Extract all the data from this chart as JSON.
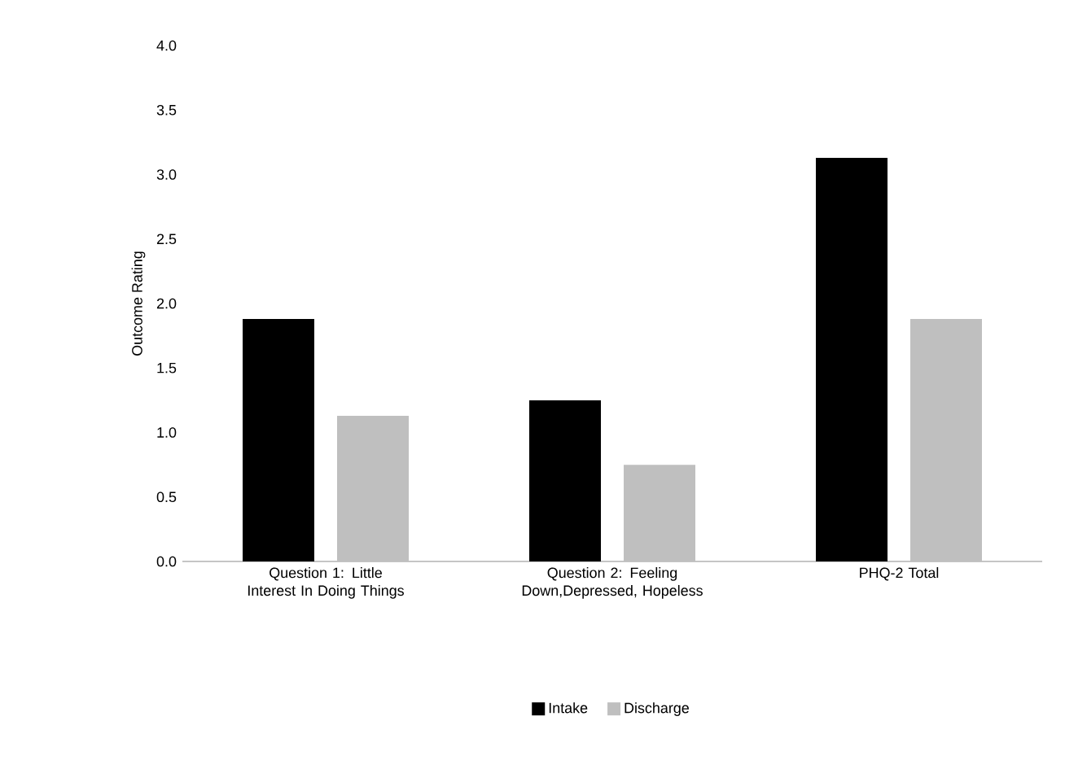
{
  "chart_data": {
    "type": "bar",
    "ylabel": "Outcome Rating",
    "categories": [
      "Question 1: Little Interest In Doing Things",
      "Question 2: Feeling Down,Depressed, Hopeless",
      "PHQ-2 Total"
    ],
    "series": [
      {
        "name": "Intake",
        "color": "#000000",
        "values": [
          1.88,
          1.25,
          3.13
        ]
      },
      {
        "name": "Discharge",
        "color": "#bfbfbf",
        "values": [
          1.13,
          0.75,
          1.88
        ]
      }
    ],
    "ylim": [
      0,
      4
    ],
    "yticks": [
      {
        "value": 0,
        "label": "0.0"
      },
      {
        "value": 0.5,
        "label": "0.5"
      },
      {
        "value": 1,
        "label": "1.0"
      },
      {
        "value": 1.5,
        "label": "1.5"
      },
      {
        "value": 2,
        "label": "2.0"
      },
      {
        "value": 2.5,
        "label": "2.5"
      },
      {
        "value": 3,
        "label": "3.0"
      },
      {
        "value": 3.5,
        "label": "3.5"
      },
      {
        "value": 4,
        "label": "4.0"
      }
    ],
    "grid": false,
    "legend": "bottom"
  }
}
